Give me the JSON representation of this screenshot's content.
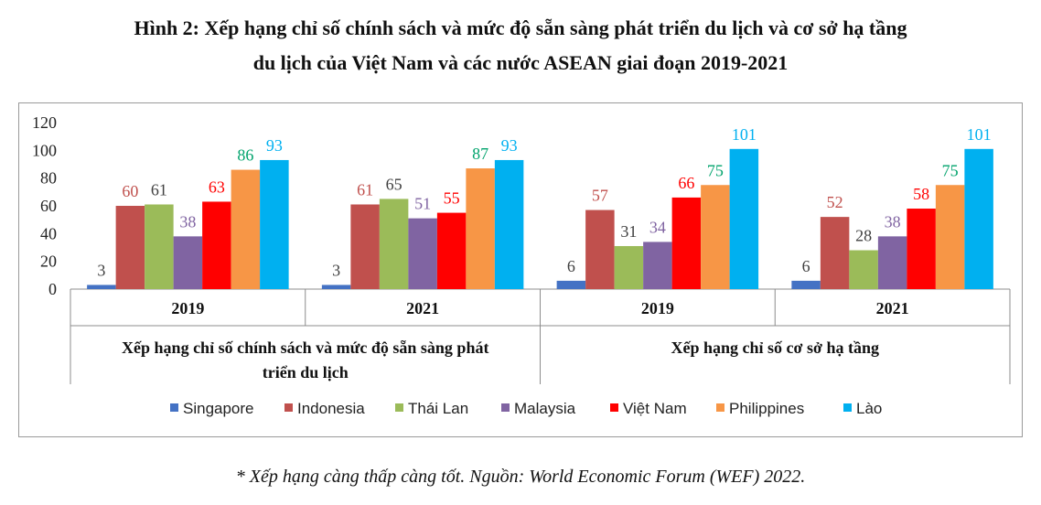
{
  "title_line1": "Hình 2: Xếp hạng chỉ số chính sách và mức độ sẵn sàng phát triển du lịch và cơ sở hạ tầng",
  "title_line2": "du lịch của Việt Nam và các nước ASEAN giai đoạn 2019-2021",
  "footnote": "* Xếp hạng càng thấp càng tốt. Nguồn: World Economic Forum (WEF) 2022.",
  "chart_data": {
    "type": "bar",
    "ylim": [
      0,
      120
    ],
    "yticks": [
      0,
      20,
      40,
      60,
      80,
      100,
      120
    ],
    "grid": false,
    "legend_position": "bottom",
    "groups": [
      {
        "label": "Xếp hạng chỉ số chính sách và mức độ sẵn sàng phát triển du lịch",
        "label_lines": [
          "Xếp hạng chỉ số chính sách và mức độ sẵn sàng phát",
          "triển du lịch"
        ],
        "categories": [
          "2019",
          "2021"
        ]
      },
      {
        "label": "Xếp hạng chỉ số cơ sở hạ tầng",
        "label_lines": [
          "Xếp hạng chỉ số cơ sở hạ tầng"
        ],
        "categories": [
          "2019",
          "2021"
        ]
      }
    ],
    "series": [
      {
        "name": "Singapore",
        "color": "#4472C4",
        "label_color": "#404040",
        "values": [
          3,
          3,
          6,
          6
        ]
      },
      {
        "name": "Indonesia",
        "color": "#C0504D",
        "label_color": "#C0504D",
        "values": [
          60,
          61,
          57,
          52
        ]
      },
      {
        "name": "Thái Lan",
        "color": "#9BBB59",
        "label_color": "#404040",
        "values": [
          61,
          65,
          31,
          28
        ]
      },
      {
        "name": "Malaysia",
        "color": "#8064A2",
        "label_color": "#8064A2",
        "values": [
          38,
          51,
          34,
          38
        ]
      },
      {
        "name": "Việt Nam",
        "color": "#FF0000",
        "label_color": "#FF0000",
        "values": [
          63,
          55,
          66,
          58
        ]
      },
      {
        "name": "Philippines",
        "color": "#F79646",
        "label_color": "#00A36C",
        "values": [
          86,
          87,
          75,
          75
        ]
      },
      {
        "name": "Lào",
        "color": "#00B0F0",
        "label_color": "#00B0F0",
        "values": [
          93,
          93,
          101,
          101
        ]
      }
    ]
  }
}
